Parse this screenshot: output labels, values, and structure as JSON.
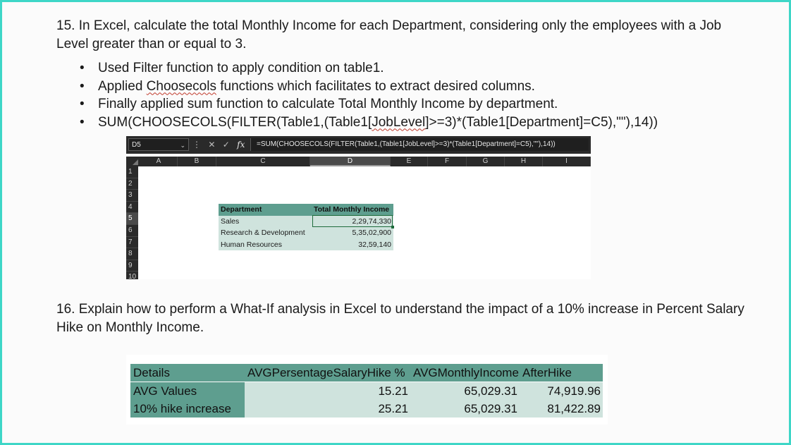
{
  "q15": {
    "text": "15. In Excel, calculate the total Monthly Income for each Department, considering only the employees with a Job Level greater than or equal to 3.",
    "bullets": [
      {
        "pre": "Used Filter function to apply condition on table1.",
        "squig": "",
        "post": ""
      },
      {
        "pre": "Applied ",
        "squig": "Choosecols",
        "post": " functions which facilitates to extract desired columns."
      },
      {
        "pre": "Finally applied sum function to calculate Total Monthly Income by department.",
        "squig": "",
        "post": ""
      },
      {
        "pre": "SUM(CHOOSECOLS(FILTER(Table1,(Table1[",
        "squig": "JobLevel",
        "post": "]>=3)*(Table1[Department]=C5),\"\"),14))"
      }
    ]
  },
  "excel": {
    "name_box": "D5",
    "formula": "=SUM(CHOOSECOLS(FILTER(Table1,(Table1[JobLevel]>=3)*(Table1[Department]=C5),\"\"),14))",
    "columns": [
      "A",
      "B",
      "C",
      "D",
      "E",
      "F",
      "G",
      "H",
      "I"
    ],
    "rows": [
      "1",
      "2",
      "3",
      "4",
      "5",
      "6",
      "7",
      "8",
      "9",
      "10"
    ],
    "table": {
      "headers": [
        "Department",
        "Total Monthly Income"
      ],
      "rows": [
        [
          "Sales",
          "2,29,74,330"
        ],
        [
          "Research & Development",
          "5,35,02,900"
        ],
        [
          "Human Resources",
          "32,59,140"
        ]
      ]
    }
  },
  "q16": {
    "text": "16. Explain how to perform a What-If analysis in Excel to understand the impact of a 10% increase in Percent Salary Hike on Monthly Income."
  },
  "whatif": {
    "headers": [
      "Details",
      "AVGPersentageSalaryHike %",
      "AVGMonthlyIncome",
      "AfterHike"
    ],
    "rows": [
      [
        "AVG Values",
        "15.21",
        "65,029.31",
        "74,919.96"
      ],
      [
        "10% hike increase",
        "25.21",
        "65,029.31",
        "81,422.89"
      ]
    ]
  },
  "colors": {
    "border": "#3ed6c7",
    "header_fill": "#5e9e8f",
    "body_fill": "#cfe3dd"
  },
  "icons": [
    "chevron-down-icon",
    "more-icon",
    "cancel-icon",
    "check-icon",
    "fx-icon"
  ]
}
